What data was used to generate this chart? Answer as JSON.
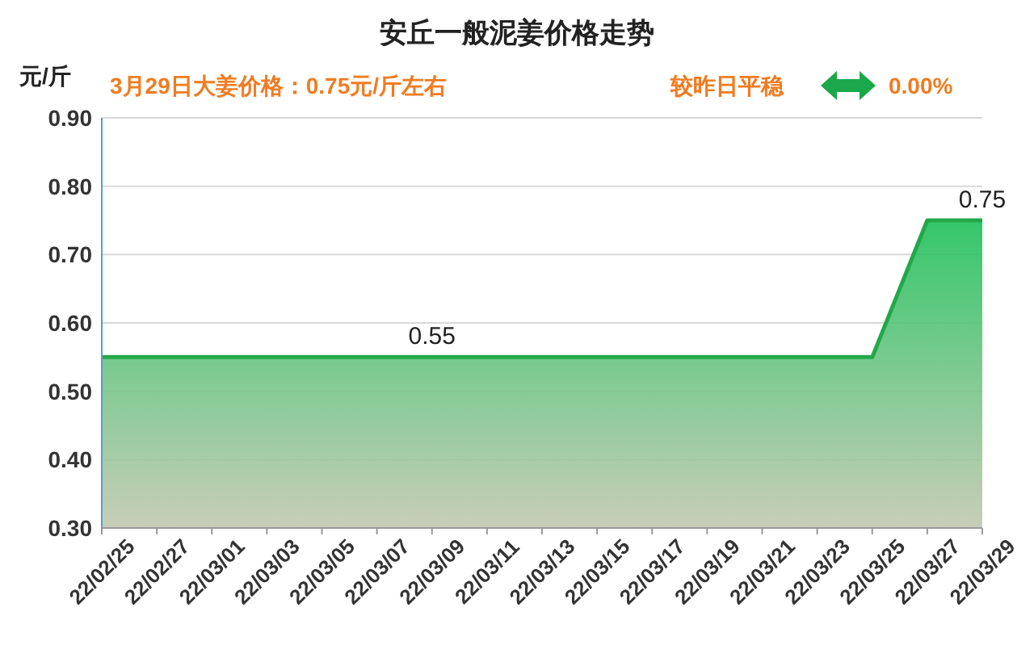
{
  "chart_data": {
    "type": "area",
    "title": "安丘一般泥姜价格走势",
    "ylabel": "元/斤",
    "annotations": [
      "3月29日大姜价格：0.75元/斤左右",
      "较昨日平稳",
      "0.00%",
      {
        "text": "0.55",
        "x": "22/03/09",
        "y": 0.55
      },
      {
        "text": "0.75",
        "x": "22/03/29",
        "y": 0.75
      }
    ],
    "categories": [
      "22/02/25",
      null,
      "22/02/27",
      null,
      "22/03/01",
      null,
      "22/03/03",
      null,
      "22/03/05",
      null,
      "22/03/07",
      null,
      "22/03/09",
      null,
      "22/03/11",
      null,
      "22/03/13",
      null,
      "22/03/15",
      null,
      "22/03/17",
      null,
      "22/03/19",
      null,
      "22/03/21",
      null,
      "22/03/23",
      null,
      "22/03/25",
      null,
      "22/03/27",
      null,
      "22/03/29"
    ],
    "series": [
      {
        "color": "#22a84a",
        "values": [
          0.55,
          0.55,
          0.55,
          0.55,
          0.55,
          0.55,
          0.55,
          0.55,
          0.55,
          0.55,
          0.55,
          0.55,
          0.55,
          0.55,
          0.55,
          0.55,
          0.55,
          0.55,
          0.55,
          0.55,
          0.55,
          0.55,
          0.55,
          0.55,
          0.55,
          0.55,
          0.55,
          0.55,
          0.55,
          0.65,
          0.75,
          0.75,
          0.75
        ]
      }
    ],
    "ylim": [
      0.3,
      0.9
    ],
    "yticks": [
      {
        "value": 0.3,
        "label": "0.30"
      },
      {
        "value": 0.4,
        "label": "0.40"
      },
      {
        "value": 0.5,
        "label": "0.50"
      },
      {
        "value": 0.6,
        "label": "0.60"
      },
      {
        "value": 0.7,
        "label": "0.70"
      },
      {
        "value": 0.8,
        "label": "0.80"
      },
      {
        "value": 0.9,
        "label": "0.90"
      }
    ],
    "grid": "y",
    "marker": "none",
    "line_style": "solid"
  }
}
